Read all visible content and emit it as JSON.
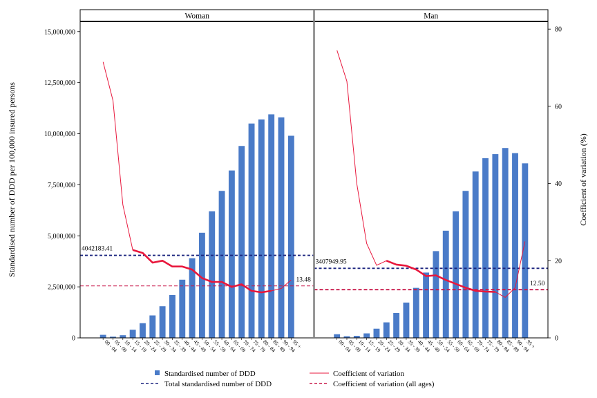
{
  "chart_data": {
    "type": "bar+line",
    "y_left_label": "Standardised number of DDD per 100,000 insured persons",
    "y_right_label": "Coefficient of variation (%)",
    "y_left_ticks": [
      0,
      2500000,
      5000000,
      7500000,
      10000000,
      12500000,
      15000000
    ],
    "y_left_tick_labels": [
      "0",
      "2,500,000",
      "5,000,000",
      "7,500,000",
      "10,000,000",
      "12,500,000",
      "15,000,000"
    ],
    "y_left_range": [
      0,
      15500000
    ],
    "y_right_ticks": [
      0,
      20,
      40,
      60,
      80
    ],
    "y_right_tick_labels": [
      "0",
      "20",
      "40",
      "60",
      "80"
    ],
    "y_right_range": [
      0,
      82
    ],
    "categories": [
      "00-04",
      "05-09",
      "10-14",
      "15-19",
      "20-24",
      "25-29",
      "30-34",
      "35-39",
      "40-44",
      "45-49",
      "50-54",
      "55-59",
      "60-64",
      "65-69",
      "70-74",
      "75-79",
      "80-84",
      "85-89",
      "90-94",
      "95+"
    ],
    "tick_labels": [
      "00 - 04",
      "05 - 09",
      "10 - 14",
      "15 - 19",
      "20 - 24",
      "25 - 29",
      "30 - 34",
      "35 - 39",
      "40 - 44",
      "45 - 49",
      "50 - 54",
      "55 - 59",
      "60 - 64",
      "65 - 69",
      "70 - 74",
      "75 - 79",
      "80 - 84",
      "85 - 89",
      "90 - 94",
      "95 +"
    ],
    "panels": [
      {
        "name": "Woman",
        "ddd": [
          150000,
          60000,
          130000,
          400000,
          720000,
          1100000,
          1550000,
          2100000,
          2850000,
          3900000,
          5150000,
          6200000,
          7200000,
          8200000,
          9400000,
          10500000,
          10700000,
          10950000,
          10800000,
          9900000
        ],
        "cv": [
          71.5,
          61.5,
          34.5,
          22.8,
          22.0,
          19.5,
          20.0,
          18.5,
          18.5,
          17.7,
          15.5,
          14.5,
          14.5,
          13.2,
          13.9,
          12.2,
          11.8,
          12.2,
          12.8,
          15.0
        ],
        "cv_bold_range": [
          3,
          17
        ],
        "total_ddd": 4042183.41,
        "total_ddd_label": "4042183.41",
        "cv_all": 13.48,
        "cv_all_label": "13.48"
      },
      {
        "name": "Man",
        "ddd": [
          180000,
          80000,
          100000,
          220000,
          450000,
          760000,
          1220000,
          1730000,
          2450000,
          3200000,
          4250000,
          5250000,
          6200000,
          7200000,
          8150000,
          8800000,
          9000000,
          9300000,
          9050000,
          8550000
        ],
        "cv": [
          74.5,
          66.5,
          40.0,
          24.5,
          18.8,
          20.0,
          19.0,
          18.7,
          17.7,
          16.0,
          16.2,
          15.0,
          14.0,
          13.0,
          12.2,
          12.0,
          11.9,
          10.5,
          13.0,
          25.0
        ],
        "cv_bold_range": [
          5,
          16
        ],
        "total_ddd": 3407949.95,
        "total_ddd_label": "3407949.95",
        "cv_all": 12.5,
        "cv_all_label": "12.50"
      }
    ],
    "legend": {
      "position": "bottom",
      "items": [
        {
          "key": "bar",
          "label": "Standardised number of DDD"
        },
        {
          "key": "cv",
          "label": "Coefficient of variation"
        },
        {
          "key": "total",
          "label": "Total standardised number of DDD"
        },
        {
          "key": "cvall",
          "label": "Coefficient of variation (all ages)"
        }
      ]
    },
    "colors": {
      "bar": "#4a7bc8",
      "cv": "#e8173c",
      "total": "#1a237e",
      "cvall": "#c9184a",
      "panel_header_bg": "#ffffff",
      "divider": "#808080"
    },
    "grid": false
  }
}
